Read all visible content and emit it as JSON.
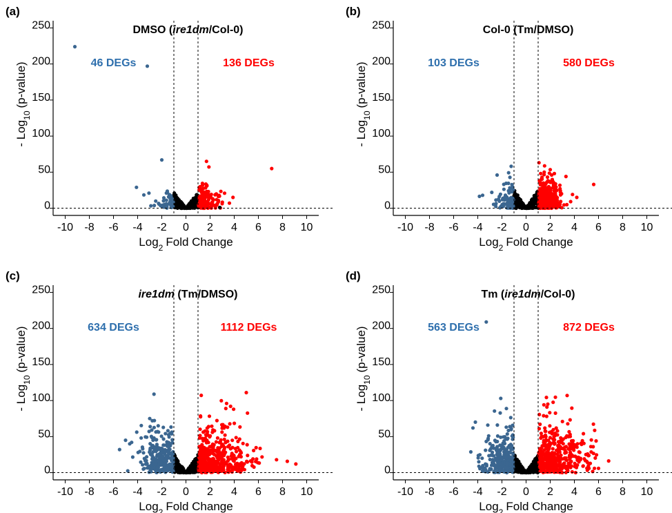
{
  "figure": {
    "colors": {
      "down": "#3b6690",
      "up": "#ff0000",
      "ns": "#000000",
      "down_label": "#2e6fad",
      "up_label": "#ff0000"
    }
  },
  "chart_data": [
    {
      "type": "scatter",
      "panel": "(a)",
      "title_parts": [
        {
          "text": "DMSO (",
          "italic": false
        },
        {
          "text": "ire1dm",
          "italic": true
        },
        {
          "text": "/Col-0)",
          "italic": false
        }
      ],
      "xlabel": "Fold Change",
      "xlabel_prefix": "Log",
      "xlabel_sub": "2",
      "ylabel_prefix": "- Log",
      "ylabel_sub": "10",
      "ylabel_suffix": "(p-value)",
      "xlim": [
        -11,
        11
      ],
      "ylim": [
        -10,
        260
      ],
      "xticks": [
        -10,
        -8,
        -6,
        -4,
        -2,
        0,
        2,
        4,
        6,
        8,
        10
      ],
      "yticks": [
        0,
        50,
        100,
        150,
        200,
        250
      ],
      "thresholds": {
        "x": [
          -1,
          1
        ],
        "y": 0
      },
      "down_count_label": "46 DEGs",
      "up_count_label": "136 DEGs",
      "notable_points": [
        {
          "x": -9.2,
          "y": 224,
          "group": "down"
        },
        {
          "x": -3.2,
          "y": 197,
          "group": "down"
        },
        {
          "x": -2.0,
          "y": 67,
          "group": "down"
        },
        {
          "x": -4.1,
          "y": 29,
          "group": "down"
        },
        {
          "x": 1.7,
          "y": 65,
          "group": "up"
        },
        {
          "x": 7.1,
          "y": 55,
          "group": "up"
        },
        {
          "x": 3.6,
          "y": 7,
          "group": "up"
        },
        {
          "x": 2.8,
          "y": 1,
          "group": "ns"
        }
      ]
    },
    {
      "type": "scatter",
      "panel": "(b)",
      "title_parts": [
        {
          "text": "Col-0 (Tm/DMSO)",
          "italic": false
        }
      ],
      "xlabel": "Fold Change",
      "xlabel_prefix": "Log",
      "xlabel_sub": "2",
      "ylabel_prefix": "- Log",
      "ylabel_sub": "10",
      "ylabel_suffix": "(p-value)",
      "xlim": [
        -11,
        11
      ],
      "ylim": [
        -10,
        260
      ],
      "xticks": [
        -10,
        -8,
        -6,
        -4,
        -2,
        0,
        2,
        4,
        6,
        8,
        10
      ],
      "yticks": [
        0,
        50,
        100,
        150,
        200,
        250
      ],
      "thresholds": {
        "x": [
          -1,
          1
        ],
        "y": 0
      },
      "down_count_label": "103 DEGs",
      "up_count_label": "580 DEGs",
      "notable_points": [
        {
          "x": -2.4,
          "y": 46,
          "group": "down"
        },
        {
          "x": -3.6,
          "y": 18,
          "group": "down"
        },
        {
          "x": 1.5,
          "y": 50,
          "group": "up"
        },
        {
          "x": 3.3,
          "y": 44,
          "group": "up"
        },
        {
          "x": 5.6,
          "y": 33,
          "group": "up"
        },
        {
          "x": 4.2,
          "y": 15,
          "group": "up"
        }
      ]
    },
    {
      "type": "scatter",
      "panel": "(c)",
      "title_parts": [
        {
          "text": "ire1dm",
          "italic": true
        },
        {
          "text": " (Tm/DMSO)",
          "italic": false
        }
      ],
      "xlabel": "Fold Change",
      "xlabel_prefix": "Log",
      "xlabel_sub": "2",
      "ylabel_prefix": "- Log",
      "ylabel_sub": "10",
      "ylabel_suffix": "(p-value)",
      "xlim": [
        -11,
        11
      ],
      "ylim": [
        -10,
        260
      ],
      "xticks": [
        -10,
        -8,
        -6,
        -4,
        -2,
        0,
        2,
        4,
        6,
        8,
        10
      ],
      "yticks": [
        0,
        50,
        100,
        150,
        200,
        250
      ],
      "thresholds": {
        "x": [
          -1,
          1
        ],
        "y": 0
      },
      "down_count_label": "634 DEGs",
      "up_count_label": "1112 DEGs",
      "notable_points": [
        {
          "x": -5.5,
          "y": 32,
          "group": "down"
        },
        {
          "x": -5.0,
          "y": 45,
          "group": "down"
        },
        {
          "x": -4.5,
          "y": 42,
          "group": "down"
        },
        {
          "x": -3.0,
          "y": 75,
          "group": "down"
        },
        {
          "x": -2.3,
          "y": 65,
          "group": "down"
        },
        {
          "x": 5.0,
          "y": 111,
          "group": "up"
        },
        {
          "x": 3.7,
          "y": 92,
          "group": "up"
        },
        {
          "x": 3.3,
          "y": 89,
          "group": "up"
        },
        {
          "x": 9.1,
          "y": 12,
          "group": "up"
        },
        {
          "x": 7.5,
          "y": 18,
          "group": "up"
        }
      ]
    },
    {
      "type": "scatter",
      "panel": "(d)",
      "title_parts": [
        {
          "text": "Tm (",
          "italic": false
        },
        {
          "text": "ire1dm",
          "italic": true
        },
        {
          "text": "/Col-0)",
          "italic": false
        }
      ],
      "xlabel": "Fold Change",
      "xlabel_prefix": "Log",
      "xlabel_sub": "2",
      "ylabel_prefix": "- Log",
      "ylabel_sub": "10",
      "ylabel_suffix": "(p-value)",
      "xlim": [
        -11,
        11
      ],
      "ylim": [
        -10,
        260
      ],
      "xticks": [
        -10,
        -8,
        -6,
        -4,
        -2,
        0,
        2,
        4,
        6,
        8,
        10
      ],
      "yticks": [
        0,
        50,
        100,
        150,
        200,
        250
      ],
      "thresholds": {
        "x": [
          -1,
          1
        ],
        "y": 0
      },
      "down_count_label": "563 DEGs",
      "up_count_label": "872 DEGs",
      "notable_points": [
        {
          "x": -3.3,
          "y": 209,
          "group": "down"
        },
        {
          "x": -2.1,
          "y": 103,
          "group": "down"
        },
        {
          "x": -4.2,
          "y": 70,
          "group": "down"
        },
        {
          "x": -4.4,
          "y": 62,
          "group": "down"
        },
        {
          "x": 3.4,
          "y": 107,
          "group": "up"
        },
        {
          "x": 1.8,
          "y": 95,
          "group": "up"
        },
        {
          "x": 5.8,
          "y": 44,
          "group": "up"
        },
        {
          "x": 6.0,
          "y": 6,
          "group": "up"
        }
      ]
    }
  ]
}
